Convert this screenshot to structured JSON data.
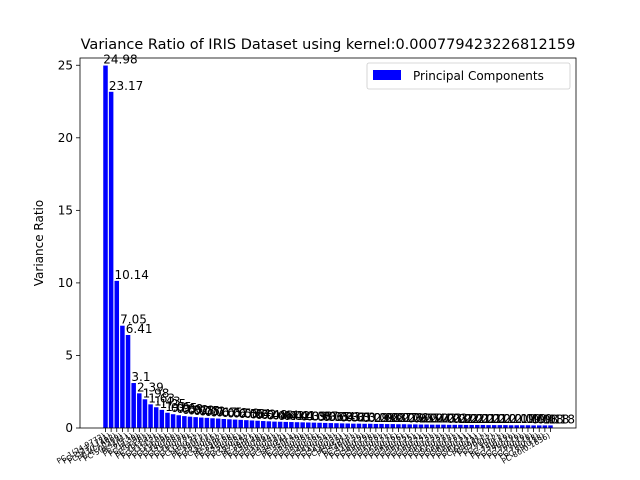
{
  "chart_data": {
    "type": "bar",
    "title": "Variance Ratio of IRIS Dataset using kernel:0.000779423226812159",
    "xlabel": "",
    "ylabel": "Variance Ratio",
    "ylim": [
      0,
      25.5
    ],
    "yticks": [
      0,
      5,
      10,
      15,
      20,
      25
    ],
    "legend": {
      "label": "Principal Components",
      "position": "top-right"
    },
    "bar_color": "#0000ff",
    "series": [
      {
        "name": "Principal Components",
        "values": [
          24.98,
          23.17,
          10.14,
          7.05,
          6.41,
          3.1,
          2.39,
          1.98,
          1.63,
          1.43,
          1.25,
          1.05,
          0.95,
          0.88,
          0.82,
          0.78,
          0.75,
          0.72,
          0.7,
          0.67,
          0.65,
          0.62,
          0.6,
          0.58,
          0.56,
          0.54,
          0.52,
          0.5,
          0.48,
          0.46,
          0.44,
          0.43,
          0.42,
          0.41,
          0.4,
          0.39,
          0.38,
          0.37,
          0.36,
          0.35,
          0.34,
          0.33,
          0.32,
          0.31,
          0.3,
          0.3,
          0.29,
          0.29,
          0.28,
          0.28,
          0.27,
          0.27,
          0.26,
          0.26,
          0.25,
          0.25,
          0.24,
          0.24,
          0.23,
          0.23,
          0.23,
          0.22,
          0.22,
          0.22,
          0.21,
          0.21,
          0.21,
          0.21,
          0.2,
          0.2,
          0.2,
          0.2,
          0.19,
          0.19,
          0.19,
          0.19,
          0.18,
          0.18,
          0.18,
          0.18
        ]
      }
    ],
    "data_labels": [
      "24.98",
      "23.17",
      "10.14",
      "7.05",
      "6.41",
      "3.1",
      "2.39",
      "1.98",
      "1.63",
      "1.43",
      "1.25",
      "1.05",
      "0.95",
      "0.88",
      "0.82",
      "0.78",
      "0.75",
      "0.72",
      "0.7",
      "0.67",
      "0.65",
      "0.62",
      "0.6",
      "0.58",
      "0.56",
      "0.54",
      "0.52",
      "0.5",
      "0.48",
      "0.46",
      "0.44",
      "0.43",
      "0.42",
      "0.41",
      "0.4",
      "0.39",
      "0.38",
      "0.37",
      "0.36",
      "0.35",
      "0.34",
      "0.33",
      "0.32",
      "0.31",
      "0.3",
      "0.3",
      "0.29",
      "0.29",
      "0.28",
      "0.28",
      "0.27",
      "0.27",
      "0.26",
      "0.26",
      "0.25",
      "0.25",
      "0.24",
      "0.24",
      "0.23",
      "0.23",
      "0.23",
      "0.22",
      "0.22",
      "0.22",
      "0.21",
      "0.21",
      "0.21",
      "0.21",
      "0.2",
      "0.2",
      "0.2",
      "0.2",
      "0.19",
      "0.19",
      "0.19",
      "0.19",
      "0.18",
      "0.18",
      "0.18",
      "0.18"
    ],
    "categories": [
      "PC-1(24.9772)",
      "PC-2(23.1721)",
      "PC-3(10.1402)",
      "PC-4(7.0509)",
      "PC-5(6.4141)",
      "PC-6(3.1)",
      "PC-7(2.39)",
      "PC-8(1.98)",
      "PC-9(1.63)",
      "PC-10(1.43)",
      "PC-11(1.25)",
      "PC-12(1.05)",
      "PC-13(0.95)",
      "PC-14(0.88)",
      "PC-15(0.82)",
      "PC-16(0.78)",
      "PC-17(0.75)",
      "PC-18(0.72)",
      "PC-19(0.7)",
      "PC-20(0.67)",
      "PC-21(0.65)",
      "PC-22(0.62)",
      "PC-23(0.6)",
      "PC-24(0.58)",
      "PC-25(0.56)",
      "PC-26(0.54)",
      "PC-27(0.52)",
      "PC-28(0.5)",
      "PC-29(0.48)",
      "PC-30(0.46)",
      "PC-31(0.44)",
      "PC-32(0.43)",
      "PC-33(0.42)",
      "PC-34(0.41)",
      "PC-35(0.4)",
      "PC-36(0.39)",
      "PC-37(0.38)",
      "PC-38(0.37)",
      "PC-39(0.36)",
      "PC-40(0.35)",
      "PC-41(0.34)",
      "PC-42(0.33)",
      "PC-43(0.32)",
      "PC-44(0.31)",
      "PC-45(0.3)",
      "PC-46(0.3)",
      "PC-47(0.29)",
      "PC-48(0.29)",
      "PC-49(0.28)",
      "PC-50(0.28)",
      "PC-51(0.27)",
      "PC-52(0.27)",
      "PC-53(0.26)",
      "PC-54(0.26)",
      "PC-55(0.25)",
      "PC-56(0.25)",
      "PC-57(0.24)",
      "PC-58(0.24)",
      "PC-59(0.23)",
      "PC-60(0.23)",
      "PC-61(0.23)",
      "PC-62(0.22)",
      "PC-63(0.22)",
      "PC-64(0.22)",
      "PC-65(0.21)",
      "PC-66(0.21)",
      "PC-67(0.21)",
      "PC-68(0.21)",
      "PC-69(0.2)",
      "PC-70(0.2)",
      "PC-71(0.2)",
      "PC-72(0.2)",
      "PC-73(0.19)",
      "PC-74(0.19)",
      "PC-75(0.19)",
      "PC-76(0.19)",
      "PC-77(0.18)",
      "PC-78(0.18)",
      "PC-79(0.18)",
      "PC-80(0.1836)"
    ],
    "grid": false
  }
}
